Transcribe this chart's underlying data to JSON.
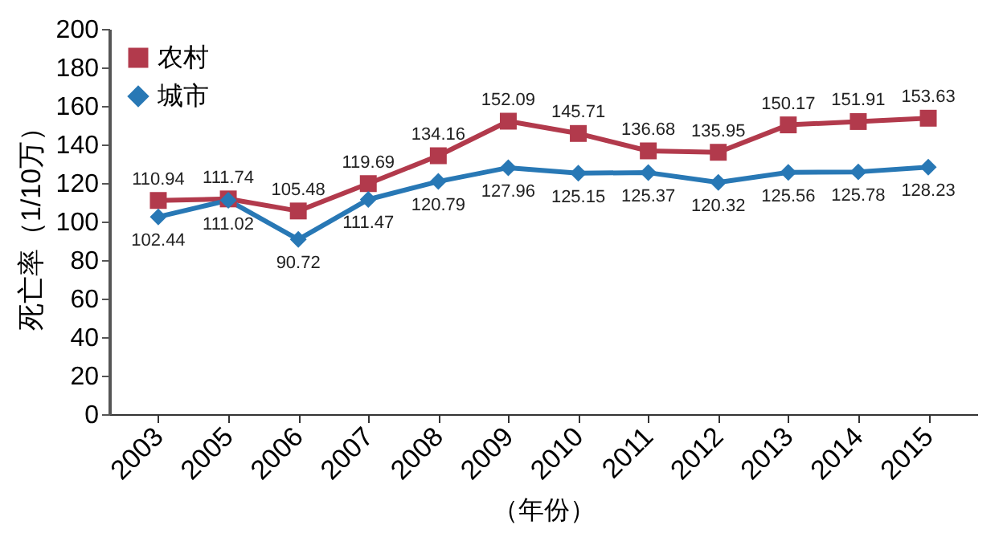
{
  "chart_data": {
    "type": "line",
    "ylabel": "死亡率（1/10万）",
    "xlabel": "（年份）",
    "categories": [
      "2003",
      "2005",
      "2006",
      "2007",
      "2008",
      "2009",
      "2010",
      "2011",
      "2012",
      "2013",
      "2014",
      "2015"
    ],
    "series": [
      {
        "name": "农村",
        "color": "#b23a4c",
        "marker": "square",
        "values": [
          110.94,
          111.74,
          105.48,
          119.69,
          134.16,
          152.09,
          145.71,
          136.68,
          135.95,
          150.17,
          151.91,
          153.63
        ]
      },
      {
        "name": "城市",
        "color": "#2878b5",
        "marker": "diamond",
        "values": [
          102.44,
          111.02,
          90.72,
          111.47,
          120.79,
          127.96,
          125.15,
          125.37,
          120.32,
          125.56,
          125.78,
          128.23
        ]
      }
    ],
    "ylim": [
      0,
      200
    ],
    "yticks": [
      0,
      20,
      40,
      60,
      80,
      100,
      120,
      140,
      160,
      180,
      200
    ],
    "grid": false,
    "legend": "top left",
    "data_labels": true,
    "line_style": "solid"
  }
}
